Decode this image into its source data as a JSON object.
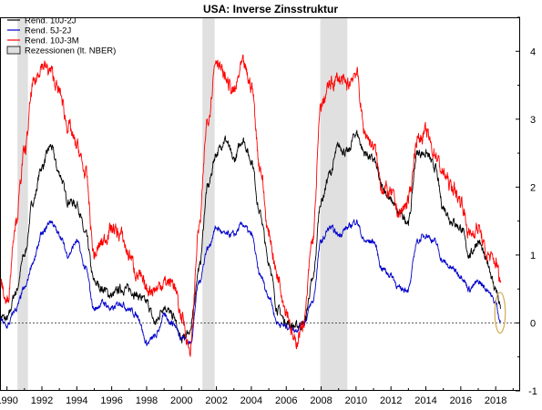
{
  "chart_data": {
    "type": "line",
    "title": "USA: Inverse Zinsstruktur",
    "xlabel": "",
    "ylabel": "",
    "xlim": [
      1989.6,
      2019.4
    ],
    "ylim": [
      -1,
      4.5
    ],
    "x_ticks": [
      "1990",
      "1992",
      "1994",
      "1996",
      "1998",
      "2000",
      "2002",
      "2004",
      "2006",
      "2008",
      "2010",
      "2012",
      "2014",
      "2016",
      "2018"
    ],
    "y_ticks": [
      "-1",
      "0",
      "1",
      "2",
      "3",
      "4"
    ],
    "grid": false,
    "y_axis_side": "right",
    "legend_position": "top-left",
    "zero_line": "dashed",
    "x_sample": [
      1989.6,
      1990.0,
      1990.5,
      1991.0,
      1991.5,
      1992.0,
      1992.5,
      1993.0,
      1993.5,
      1994.0,
      1994.5,
      1995.0,
      1995.5,
      1996.0,
      1996.5,
      1997.0,
      1997.5,
      1998.0,
      1998.5,
      1999.0,
      1999.5,
      2000.0,
      2000.5,
      2001.0,
      2001.5,
      2002.0,
      2002.5,
      2003.0,
      2003.5,
      2004.0,
      2004.5,
      2005.0,
      2005.5,
      2006.0,
      2006.5,
      2007.0,
      2007.5,
      2008.0,
      2008.5,
      2009.0,
      2009.5,
      2010.0,
      2010.5,
      2011.0,
      2011.5,
      2012.0,
      2012.5,
      2013.0,
      2013.5,
      2014.0,
      2014.5,
      2015.0,
      2015.5,
      2016.0,
      2016.5,
      2017.0,
      2017.5,
      2018.0,
      2018.3
    ],
    "series": [
      {
        "name": "Rend. 10J-2J",
        "color": "#000000",
        "values": [
          0.1,
          0.05,
          0.45,
          1.0,
          1.8,
          2.3,
          2.6,
          2.2,
          1.8,
          1.75,
          1.3,
          0.6,
          0.5,
          0.4,
          0.5,
          0.5,
          0.4,
          0.3,
          0.0,
          0.25,
          0.1,
          -0.25,
          -0.1,
          0.8,
          2.0,
          2.5,
          2.7,
          2.4,
          2.7,
          2.4,
          1.6,
          0.9,
          0.2,
          0.0,
          -0.05,
          -0.02,
          0.6,
          1.8,
          2.2,
          2.6,
          2.5,
          2.8,
          2.5,
          2.4,
          2.0,
          1.8,
          1.6,
          1.5,
          2.5,
          2.5,
          2.3,
          1.7,
          1.5,
          1.4,
          1.0,
          1.2,
          0.9,
          0.5,
          0.2
        ]
      },
      {
        "name": "Rend. 5J-2J",
        "color": "#0000cc",
        "values": [
          0.05,
          -0.05,
          0.2,
          0.5,
          0.9,
          1.3,
          1.5,
          1.3,
          1.0,
          1.2,
          0.8,
          0.2,
          0.3,
          0.2,
          0.3,
          0.2,
          0.1,
          -0.3,
          -0.2,
          0.1,
          0.0,
          -0.2,
          -0.3,
          0.6,
          1.1,
          1.4,
          1.3,
          1.3,
          1.45,
          1.3,
          0.7,
          0.4,
          0.0,
          -0.05,
          -0.1,
          0.0,
          0.3,
          1.2,
          1.4,
          1.3,
          1.4,
          1.5,
          1.2,
          1.2,
          0.8,
          0.7,
          0.5,
          0.5,
          1.2,
          1.3,
          1.2,
          0.9,
          0.8,
          0.7,
          0.5,
          0.6,
          0.5,
          0.3,
          0.0
        ]
      },
      {
        "name": "Rend. 10J-3M",
        "color": "#ff0000",
        "values": [
          0.6,
          0.3,
          1.5,
          2.5,
          3.5,
          3.8,
          3.7,
          3.4,
          2.9,
          2.6,
          2.2,
          1.0,
          1.2,
          1.4,
          1.3,
          1.0,
          0.7,
          0.5,
          0.5,
          0.6,
          0.6,
          0.1,
          -0.4,
          1.4,
          3.0,
          3.9,
          3.6,
          3.4,
          3.8,
          3.5,
          2.3,
          1.3,
          0.7,
          0.2,
          -0.3,
          0.0,
          1.2,
          3.2,
          3.5,
          3.6,
          3.5,
          3.7,
          2.8,
          2.6,
          2.0,
          1.9,
          1.6,
          1.8,
          2.7,
          2.8,
          2.5,
          2.2,
          2.0,
          1.8,
          1.3,
          1.4,
          1.0,
          0.9,
          0.6
        ]
      }
    ],
    "recessions": {
      "name": "Rezessionen (lt. NBER)",
      "color": "#e0e0e0",
      "periods": [
        [
          1990.6,
          1991.2
        ],
        [
          2001.2,
          2001.9
        ],
        [
          2007.95,
          2009.5
        ]
      ]
    },
    "highlight": {
      "shape": "ellipse",
      "color": "#d4b060",
      "x_range": [
        2017.95,
        2018.55
      ],
      "y_range": [
        -0.15,
        0.45
      ]
    }
  }
}
